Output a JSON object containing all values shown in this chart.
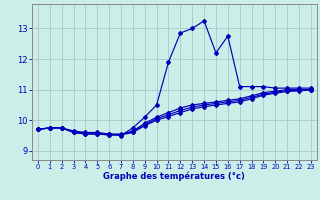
{
  "xlabel": "Graphe des températures (°c)",
  "bg_color": "#cceee8",
  "grid_color": "#aacccc",
  "line_color": "#0000bb",
  "xlim": [
    -0.5,
    23.5
  ],
  "ylim": [
    8.7,
    13.8
  ],
  "yticks": [
    9,
    10,
    11,
    12,
    13
  ],
  "xticks": [
    0,
    1,
    2,
    3,
    4,
    5,
    6,
    7,
    8,
    9,
    10,
    11,
    12,
    13,
    14,
    15,
    16,
    17,
    18,
    19,
    20,
    21,
    22,
    23
  ],
  "line1_x": [
    0,
    1,
    2,
    3,
    4,
    5,
    6,
    7,
    8,
    9,
    10,
    11,
    12,
    13,
    14,
    15,
    16,
    17,
    18,
    19,
    20,
    21,
    22,
    23
  ],
  "line1_y": [
    9.7,
    9.75,
    9.75,
    9.65,
    9.6,
    9.6,
    9.55,
    9.5,
    9.75,
    10.1,
    10.5,
    11.9,
    12.85,
    13.0,
    13.25,
    12.2,
    12.75,
    11.1,
    11.1,
    11.1,
    11.05,
    11.05,
    11.05,
    11.05
  ],
  "line2_x": [
    0,
    1,
    2,
    3,
    4,
    5,
    6,
    7,
    8,
    9,
    10,
    11,
    12,
    13,
    14,
    15,
    16,
    17,
    18,
    19,
    20,
    21,
    22,
    23
  ],
  "line2_y": [
    9.7,
    9.75,
    9.75,
    9.6,
    9.55,
    9.55,
    9.52,
    9.52,
    9.65,
    9.9,
    10.1,
    10.25,
    10.4,
    10.5,
    10.55,
    10.6,
    10.65,
    10.7,
    10.8,
    10.9,
    10.95,
    11.0,
    11.0,
    11.0
  ],
  "line3_x": [
    0,
    1,
    2,
    3,
    4,
    5,
    6,
    7,
    8,
    9,
    10,
    11,
    12,
    13,
    14,
    15,
    16,
    17,
    18,
    19,
    20,
    21,
    22,
    23
  ],
  "line3_y": [
    9.7,
    9.75,
    9.75,
    9.62,
    9.58,
    9.58,
    9.55,
    9.55,
    9.62,
    9.85,
    10.05,
    10.18,
    10.32,
    10.43,
    10.5,
    10.55,
    10.6,
    10.65,
    10.75,
    10.85,
    10.92,
    10.97,
    10.98,
    11.0
  ],
  "line4_x": [
    0,
    1,
    2,
    3,
    4,
    5,
    6,
    7,
    8,
    9,
    10,
    11,
    12,
    13,
    14,
    15,
    16,
    17,
    18,
    19,
    20,
    21,
    22,
    23
  ],
  "line4_y": [
    9.7,
    9.75,
    9.75,
    9.6,
    9.55,
    9.55,
    9.52,
    9.52,
    9.6,
    9.82,
    10.0,
    10.12,
    10.25,
    10.37,
    10.44,
    10.5,
    10.55,
    10.6,
    10.7,
    10.82,
    10.88,
    10.94,
    10.96,
    10.99
  ]
}
